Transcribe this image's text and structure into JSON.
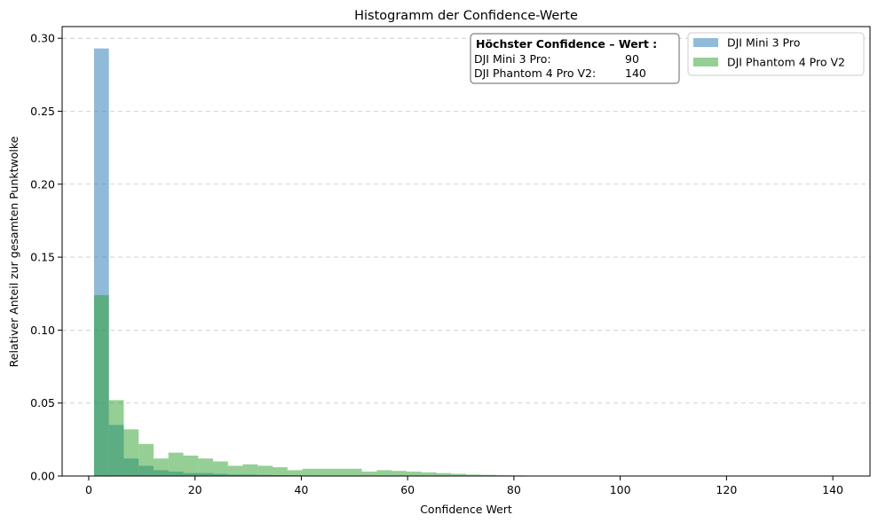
{
  "chart_data": {
    "type": "bar",
    "title": "Histogramm der Confidence-Werte",
    "xlabel": "Confidence Wert",
    "ylabel": "Relativer Anteil zur gesamten Punktwolke",
    "xlim": [
      -5,
      147
    ],
    "ylim": [
      0,
      0.308
    ],
    "xticks": [
      0,
      20,
      40,
      60,
      80,
      100,
      120,
      140
    ],
    "yticks": [
      0.0,
      0.05,
      0.1,
      0.15,
      0.2,
      0.25,
      0.3
    ],
    "ytick_labels": [
      "0.00",
      "0.05",
      "0.10",
      "0.15",
      "0.20",
      "0.25",
      "0.30"
    ],
    "grid": "y-dashed",
    "legend_position": "top-right",
    "bin_edges": [
      1,
      3.8,
      6.6,
      9.4,
      12.2,
      15,
      17.8,
      20.6,
      23.4,
      26.2,
      29,
      31.8,
      34.6,
      37.4,
      40.2,
      43,
      45.8,
      48.6,
      51.4,
      54.2,
      57,
      59.8,
      62.6,
      65.4,
      68.2,
      71,
      73.8,
      76.6,
      79.4,
      82.2,
      85,
      87.8,
      90.6,
      93.4,
      96.2,
      99,
      101.8,
      104.6,
      107.4,
      110.2,
      113,
      115.8,
      118.6,
      121.4,
      124.2,
      127,
      129.8,
      132.6,
      135.4,
      138.2,
      141
    ],
    "series": [
      {
        "name": "DJI Mini 3 Pro",
        "color": "#1f77b4",
        "values": [
          0.293,
          0.035,
          0.012,
          0.007,
          0.004,
          0.003,
          0.002,
          0.002,
          0.0015,
          0.001,
          0.001,
          0.0008,
          0.0006,
          0.0005,
          0.0004,
          0.0003,
          0.0003,
          0.0002,
          0.0002,
          0.0002,
          0.0001,
          0.0001,
          0.0001,
          0.0001,
          0.0001,
          0.0001,
          0.0001,
          0.0001,
          0.0001,
          0.0001,
          0.0001,
          0.0001,
          0,
          0,
          0,
          0,
          0,
          0,
          0,
          0,
          0,
          0,
          0,
          0,
          0,
          0,
          0,
          0,
          0,
          0
        ]
      },
      {
        "name": "DJI Phantom 4 Pro V2",
        "color": "#2ca02c",
        "values": [
          0.124,
          0.052,
          0.032,
          0.022,
          0.012,
          0.016,
          0.014,
          0.012,
          0.01,
          0.007,
          0.008,
          0.007,
          0.006,
          0.004,
          0.005,
          0.005,
          0.005,
          0.005,
          0.003,
          0.004,
          0.0035,
          0.003,
          0.0025,
          0.002,
          0.0015,
          0.001,
          0.0008,
          0.0005,
          0.0004,
          0.0003,
          0.0003,
          0.0002,
          0.0002,
          0.0002,
          0.0001,
          0.0001,
          0.0001,
          0.0001,
          0.0001,
          0.0001,
          0.0001,
          0.0001,
          0.0001,
          0.0001,
          0.0001,
          0.0001,
          0.0001,
          0.0001,
          0.0001,
          0.0001
        ]
      }
    ],
    "annotation": {
      "heading": "Höchster Confidence – Wert :",
      "rows": [
        {
          "label": "DJI Mini 3 Pro:",
          "value": "90"
        },
        {
          "label": "DJI Phantom 4 Pro V2:",
          "value": "140"
        }
      ]
    }
  }
}
